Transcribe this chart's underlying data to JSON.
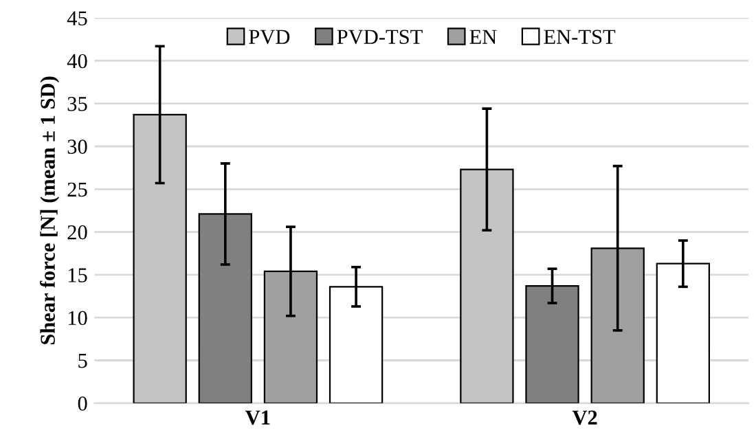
{
  "chart_data": {
    "type": "bar",
    "ylabel": "Shear force [N] (mean ± 1 SD)",
    "categories": [
      "V1",
      "V2"
    ],
    "series": [
      {
        "name": "PVD",
        "color": "#c4c4c4",
        "values": [
          33.7,
          27.3
        ],
        "errors": [
          8.0,
          7.1
        ]
      },
      {
        "name": "PVD-TST",
        "color": "#808080",
        "values": [
          22.1,
          13.7
        ],
        "errors": [
          5.9,
          2.0
        ]
      },
      {
        "name": "EN",
        "color": "#a0a0a0",
        "values": [
          15.4,
          18.1
        ],
        "errors": [
          5.2,
          9.6
        ]
      },
      {
        "name": "EN-TST",
        "color": "#ffffff",
        "values": [
          13.6,
          16.3
        ],
        "errors": [
          2.3,
          2.7
        ]
      }
    ],
    "ylim": [
      0,
      45
    ],
    "yticks": [
      0,
      5,
      10,
      15,
      20,
      25,
      30,
      35,
      40,
      45
    ],
    "grid": "y",
    "legend": "top"
  }
}
